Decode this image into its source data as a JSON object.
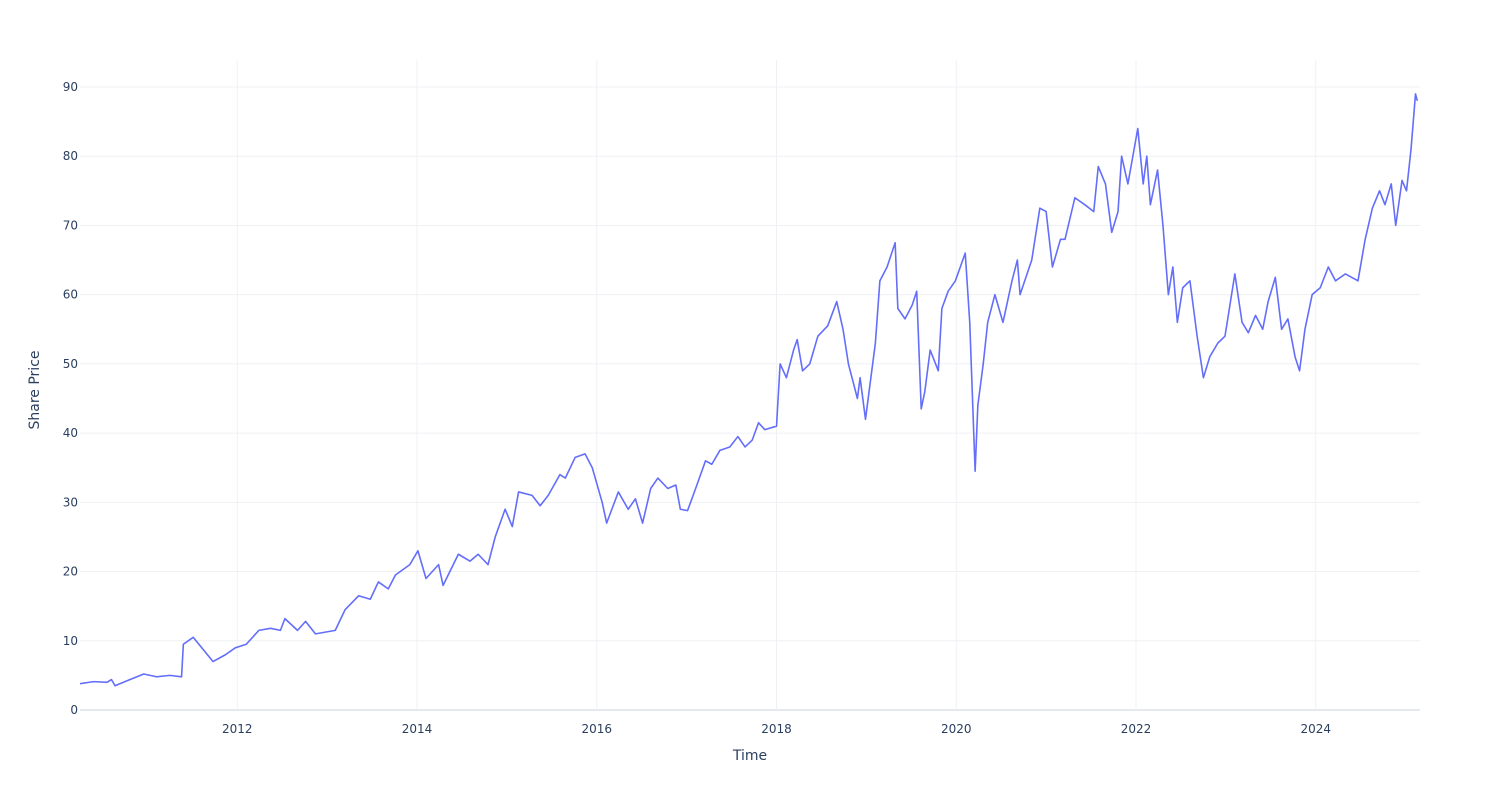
{
  "chart_data": {
    "type": "line",
    "x_label": "Time",
    "y_label": "Share Price",
    "xlim": [
      2010.25,
      2025.16
    ],
    "ylim": [
      0,
      93.9
    ],
    "xticks": [
      2012,
      2014,
      2016,
      2018,
      2020,
      2022,
      2024
    ],
    "yticks": [
      0,
      10,
      20,
      30,
      40,
      50,
      60,
      70,
      80,
      90
    ],
    "grid": true,
    "series": [
      {
        "color": "#636efa",
        "x": [
          2010.25,
          2010.4,
          2010.55,
          2010.6,
          2010.64,
          2010.75,
          2010.96,
          2011.1,
          2011.25,
          2011.38,
          2011.4,
          2011.51,
          2011.73,
          2011.87,
          2011.98,
          2012.1,
          2012.24,
          2012.37,
          2012.48,
          2012.53,
          2012.67,
          2012.76,
          2012.87,
          2013.09,
          2013.2,
          2013.35,
          2013.48,
          2013.57,
          2013.68,
          2013.76,
          2013.92,
          2014.01,
          2014.1,
          2014.24,
          2014.29,
          2014.46,
          2014.59,
          2014.68,
          2014.79,
          2014.87,
          2014.98,
          2015.06,
          2015.13,
          2015.28,
          2015.37,
          2015.46,
          2015.59,
          2015.65,
          2015.76,
          2015.87,
          2015.95,
          2016.06,
          2016.11,
          2016.24,
          2016.35,
          2016.43,
          2016.51,
          2016.6,
          2016.68,
          2016.79,
          2016.88,
          2016.93,
          2017.01,
          2017.1,
          2017.21,
          2017.28,
          2017.37,
          2017.48,
          2017.57,
          2017.65,
          2017.73,
          2017.8,
          2017.87,
          2018.0,
          2018.04,
          2018.11,
          2018.19,
          2018.23,
          2018.29,
          2018.37,
          2018.46,
          2018.57,
          2018.67,
          2018.74,
          2018.8,
          2018.9,
          2018.93,
          2018.99,
          2019.04,
          2019.1,
          2019.15,
          2019.23,
          2019.32,
          2019.35,
          2019.43,
          2019.51,
          2019.56,
          2019.61,
          2019.65,
          2019.71,
          2019.8,
          2019.84,
          2019.91,
          2019.99,
          2020.1,
          2020.15,
          2020.21,
          2020.24,
          2020.3,
          2020.35,
          2020.43,
          2020.52,
          2020.62,
          2020.68,
          2020.71,
          2020.84,
          2020.93,
          2021.0,
          2021.07,
          2021.16,
          2021.21,
          2021.32,
          2021.43,
          2021.53,
          2021.58,
          2021.66,
          2021.73,
          2021.8,
          2021.84,
          2021.91,
          2022.02,
          2022.08,
          2022.12,
          2022.16,
          2022.24,
          2022.3,
          2022.36,
          2022.41,
          2022.46,
          2022.52,
          2022.6,
          2022.68,
          2022.75,
          2022.82,
          2022.91,
          2022.99,
          2023.1,
          2023.18,
          2023.25,
          2023.33,
          2023.41,
          2023.47,
          2023.55,
          2023.62,
          2023.69,
          2023.77,
          2023.82,
          2023.88,
          2023.96,
          2024.05,
          2024.14,
          2024.22,
          2024.33,
          2024.47,
          2024.55,
          2024.63,
          2024.71,
          2024.77,
          2024.84,
          2024.89,
          2024.96,
          2025.01,
          2025.06,
          2025.11,
          2025.13
        ],
        "values": [
          3.8,
          4.1,
          4.0,
          4.4,
          3.5,
          4.1,
          5.2,
          4.8,
          5.0,
          4.8,
          9.5,
          10.5,
          7.0,
          8.0,
          9.0,
          9.5,
          11.5,
          11.8,
          11.5,
          13.2,
          11.5,
          12.8,
          11.0,
          11.5,
          14.5,
          16.5,
          16.0,
          18.5,
          17.5,
          19.5,
          21.0,
          23.0,
          19.0,
          21.0,
          18.0,
          22.5,
          21.5,
          22.5,
          21.0,
          25.0,
          29.0,
          26.5,
          31.5,
          31.0,
          29.5,
          31.0,
          34.0,
          33.5,
          36.5,
          37.0,
          35.0,
          30.0,
          27.0,
          31.5,
          29.0,
          30.5,
          27.0,
          32.0,
          33.5,
          32.0,
          32.5,
          29.0,
          28.8,
          32.0,
          36.0,
          35.5,
          37.5,
          38.0,
          39.5,
          38.0,
          39.0,
          41.5,
          40.5,
          41.0,
          50.0,
          48.0,
          52.0,
          53.5,
          49.0,
          50.0,
          54.0,
          55.5,
          59.0,
          55.0,
          50.0,
          45.0,
          48.0,
          42.0,
          47.0,
          53.0,
          62.0,
          64.0,
          67.5,
          58.0,
          56.5,
          58.5,
          60.5,
          43.5,
          46.0,
          52.0,
          49.0,
          58.0,
          60.5,
          62.0,
          66.0,
          56.0,
          34.5,
          44.0,
          50.0,
          56.0,
          60.0,
          56.0,
          62.0,
          65.0,
          60.0,
          65.0,
          72.5,
          72.0,
          64.0,
          68.0,
          68.0,
          74.0,
          73.0,
          72.0,
          78.5,
          76.0,
          69.0,
          72.0,
          80.0,
          76.0,
          84.0,
          76.0,
          80.0,
          73.0,
          78.0,
          70.0,
          60.0,
          64.0,
          56.0,
          61.0,
          62.0,
          54.0,
          48.0,
          51.0,
          53.0,
          54.0,
          63.0,
          56.0,
          54.5,
          57.0,
          55.0,
          59.0,
          62.5,
          55.0,
          56.5,
          51.0,
          49.0,
          55.0,
          60.0,
          61.0,
          64.0,
          62.0,
          63.0,
          62.0,
          68.0,
          72.5,
          75.0,
          73.0,
          76.0,
          70.0,
          76.5,
          75.0,
          81.0,
          89.0,
          88.0
        ]
      }
    ]
  }
}
